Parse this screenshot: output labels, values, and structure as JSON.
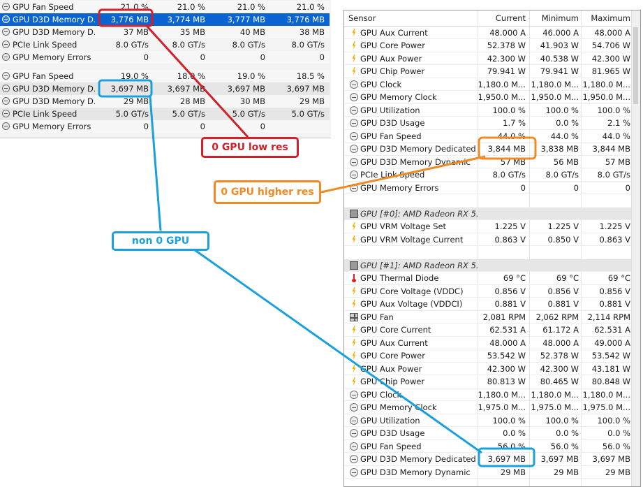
{
  "left_snippet": {
    "rows": [
      {
        "name": "GPU Fan Speed",
        "values": [
          "21.0 %",
          "21.0 %",
          "21.0 %",
          "21.0 %"
        ]
      },
      {
        "name": "GPU D3D Memory D...",
        "values": [
          "3,776 MB",
          "3,774 MB",
          "3,777 MB",
          "3,776 MB"
        ]
      },
      {
        "name": "GPU D3D Memory D...",
        "values": [
          "37 MB",
          "35 MB",
          "40 MB",
          "38 MB"
        ]
      },
      {
        "name": "PCIe Link Speed",
        "values": [
          "8.0 GT/s",
          "8.0 GT/s",
          "8.0 GT/s",
          "8.0 GT/s"
        ]
      },
      {
        "name": "GPU Memory Errors",
        "values": [
          "0",
          "0",
          "0",
          "0"
        ]
      },
      {
        "name": "",
        "values": [
          "",
          "",
          "",
          ""
        ]
      },
      {
        "name": "GPU Fan Speed",
        "values": [
          "19.0 %",
          "18.0 %",
          "19.0 %",
          "18.5 %"
        ]
      },
      {
        "name": "GPU D3D Memory D...",
        "values": [
          "3,697 MB",
          "3,697 MB",
          "3,697 MB",
          "3,697 MB"
        ]
      },
      {
        "name": "GPU D3D Memory D...",
        "values": [
          "29 MB",
          "28 MB",
          "30 MB",
          "29 MB"
        ]
      },
      {
        "name": "PCIe Link Speed",
        "values": [
          "5.0 GT/s",
          "5.0 GT/s",
          "5.0 GT/s",
          "5.0 GT/s"
        ]
      },
      {
        "name": "GPU Memory Errors",
        "values": [
          "0",
          "0",
          "0",
          ""
        ]
      }
    ]
  },
  "sensor_window": {
    "headers": {
      "sensor": "Sensor",
      "current": "Current",
      "minimum": "Minimum",
      "maximum": "Maximum"
    },
    "rows": [
      {
        "icon": "bolt-icon",
        "name": "GPU Aux Current",
        "cur": "48.000 A",
        "min": "46.000 A",
        "max": "48.000 A"
      },
      {
        "icon": "bolt-icon",
        "name": "GPU Core Power",
        "cur": "52.378 W",
        "min": "41.903 W",
        "max": "54.706 W"
      },
      {
        "icon": "bolt-icon",
        "name": "GPU Aux Power",
        "cur": "42.300 W",
        "min": "40.538 W",
        "max": "42.300 W"
      },
      {
        "icon": "bolt-icon",
        "name": "GPU Chip Power",
        "cur": "79.941 W",
        "min": "79.941 W",
        "max": "81.965 W"
      },
      {
        "icon": "clock-icon",
        "name": "GPU Clock",
        "cur": "1,180.0 M...",
        "min": "1,180.0 M...",
        "max": "1,180.0 M..."
      },
      {
        "icon": "clock-icon",
        "name": "GPU Memory Clock",
        "cur": "1,950.0 M...",
        "min": "1,950.0 M...",
        "max": "1,950.0 M..."
      },
      {
        "icon": "clock-icon",
        "name": "GPU Utilization",
        "cur": "100.0 %",
        "min": "100.0 %",
        "max": "100.0 %"
      },
      {
        "icon": "clock-icon",
        "name": "GPU D3D Usage",
        "cur": "1.7 %",
        "min": "0.0 %",
        "max": "2.1 %"
      },
      {
        "icon": "clock-icon",
        "name": "GPU Fan Speed",
        "cur": "44.0 %",
        "min": "44.0 %",
        "max": "44.0 %"
      },
      {
        "icon": "clock-icon",
        "name": "GPU D3D Memory Dedicated",
        "cur": "3,844 MB",
        "min": "3,838 MB",
        "max": "3,844 MB"
      },
      {
        "icon": "clock-icon",
        "name": "GPU D3D Memory Dynamic",
        "cur": "57 MB",
        "min": "56 MB",
        "max": "57 MB"
      },
      {
        "icon": "clock-icon",
        "name": "PCIe Link Speed",
        "cur": "8.0 GT/s",
        "min": "8.0 GT/s",
        "max": "8.0 GT/s"
      },
      {
        "icon": "clock-icon",
        "name": "GPU Memory Errors",
        "cur": "0",
        "min": "0",
        "max": "0"
      },
      {
        "icon": "",
        "name": "",
        "cur": "",
        "min": "",
        "max": "",
        "blank": true
      },
      {
        "icon": "chip-icon",
        "name": "GPU [#0]: AMD Radeon RX 5...",
        "cur": "",
        "min": "",
        "max": "",
        "group": true
      },
      {
        "icon": "bolt-icon",
        "name": "GPU VRM Voltage Set",
        "cur": "1.225 V",
        "min": "1.225 V",
        "max": "1.225 V"
      },
      {
        "icon": "bolt-icon",
        "name": "GPU VRM Voltage Current",
        "cur": "0.863 V",
        "min": "0.850 V",
        "max": "0.863 V"
      },
      {
        "icon": "",
        "name": "",
        "cur": "",
        "min": "",
        "max": "",
        "blank": true
      },
      {
        "icon": "chip-icon",
        "name": "GPU [#1]: AMD Radeon RX 5...",
        "cur": "",
        "min": "",
        "max": "",
        "group": true
      },
      {
        "icon": "thermometer-icon",
        "name": "GPU Thermal Diode",
        "cur": "69 °C",
        "min": "69 °C",
        "max": "69 °C"
      },
      {
        "icon": "bolt-icon",
        "name": "GPU Core Voltage (VDDC)",
        "cur": "0.856 V",
        "min": "0.856 V",
        "max": "0.856 V"
      },
      {
        "icon": "bolt-icon",
        "name": "GPU Aux Voltage (VDDCI)",
        "cur": "0.881 V",
        "min": "0.881 V",
        "max": "0.881 V"
      },
      {
        "icon": "fan-icon",
        "name": "GPU Fan",
        "cur": "2,081 RPM",
        "min": "2,062 RPM",
        "max": "2,114 RPM"
      },
      {
        "icon": "bolt-icon",
        "name": "GPU Core Current",
        "cur": "62.531 A",
        "min": "61.172 A",
        "max": "62.531 A"
      },
      {
        "icon": "bolt-icon",
        "name": "GPU Aux Current",
        "cur": "48.000 A",
        "min": "48.000 A",
        "max": "49.000 A"
      },
      {
        "icon": "bolt-icon",
        "name": "GPU Core Power",
        "cur": "53.542 W",
        "min": "52.378 W",
        "max": "53.542 W"
      },
      {
        "icon": "bolt-icon",
        "name": "GPU Aux Power",
        "cur": "42.300 W",
        "min": "42.300 W",
        "max": "43.181 W"
      },
      {
        "icon": "bolt-icon",
        "name": "GPU Chip Power",
        "cur": "80.813 W",
        "min": "80.465 W",
        "max": "80.848 W"
      },
      {
        "icon": "clock-icon",
        "name": "GPU Clock",
        "cur": "1,180.0 M...",
        "min": "1,180.0 M...",
        "max": "1,180.0 M..."
      },
      {
        "icon": "clock-icon",
        "name": "GPU Memory Clock",
        "cur": "1,975.0 M...",
        "min": "1,975.0 M...",
        "max": "1,975.0 M..."
      },
      {
        "icon": "clock-icon",
        "name": "GPU Utilization",
        "cur": "100.0 %",
        "min": "100.0 %",
        "max": "100.0 %"
      },
      {
        "icon": "clock-icon",
        "name": "GPU D3D Usage",
        "cur": "0.0 %",
        "min": "0.0 %",
        "max": "0.0 %"
      },
      {
        "icon": "clock-icon",
        "name": "GPU Fan Speed",
        "cur": "56.0 %",
        "min": "56.0 %",
        "max": "56.0 %"
      },
      {
        "icon": "clock-icon",
        "name": "GPU D3D Memory Dedicated",
        "cur": "3,697 MB",
        "min": "3,697 MB",
        "max": "3,697 MB"
      },
      {
        "icon": "clock-icon",
        "name": "GPU D3D Memory Dynamic",
        "cur": "29 MB",
        "min": "29 MB",
        "max": "29 MB"
      }
    ]
  },
  "annotations": {
    "red_label": "0 GPU low res",
    "orange_label": "0 GPU higher res",
    "blue_label": "non 0 GPU",
    "colors": {
      "red": "#d0202a",
      "orange": "#f08a24",
      "blue": "#1aa0dc",
      "selection": "#0a64d2"
    }
  }
}
